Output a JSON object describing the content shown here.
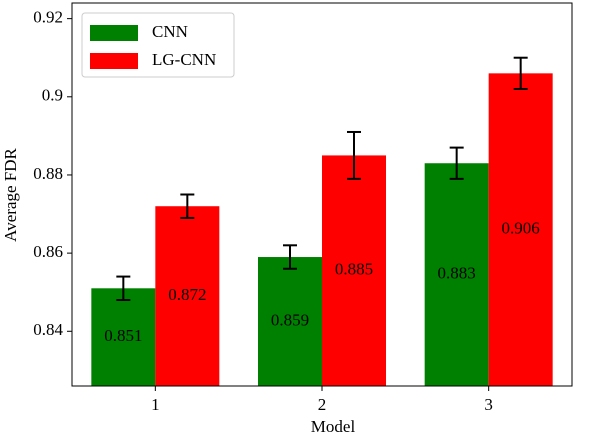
{
  "chart_data": {
    "type": "bar",
    "x_label": "Model",
    "y_label": "Average FDR",
    "categories": [
      "1",
      "2",
      "3"
    ],
    "series": [
      {
        "name": "CNN",
        "color": "#008000",
        "values": [
          0.851,
          0.859,
          0.883
        ],
        "errors": [
          0.003,
          0.003,
          0.004
        ]
      },
      {
        "name": "LG-CNN",
        "color": "#ff0000",
        "values": [
          0.872,
          0.885,
          0.906
        ],
        "errors": [
          0.003,
          0.006,
          0.004
        ]
      }
    ],
    "ylim": [
      0.826,
      0.924
    ],
    "yticks": [
      0.84,
      0.86,
      0.88,
      0.9,
      0.92
    ],
    "legend": "upper-left"
  }
}
